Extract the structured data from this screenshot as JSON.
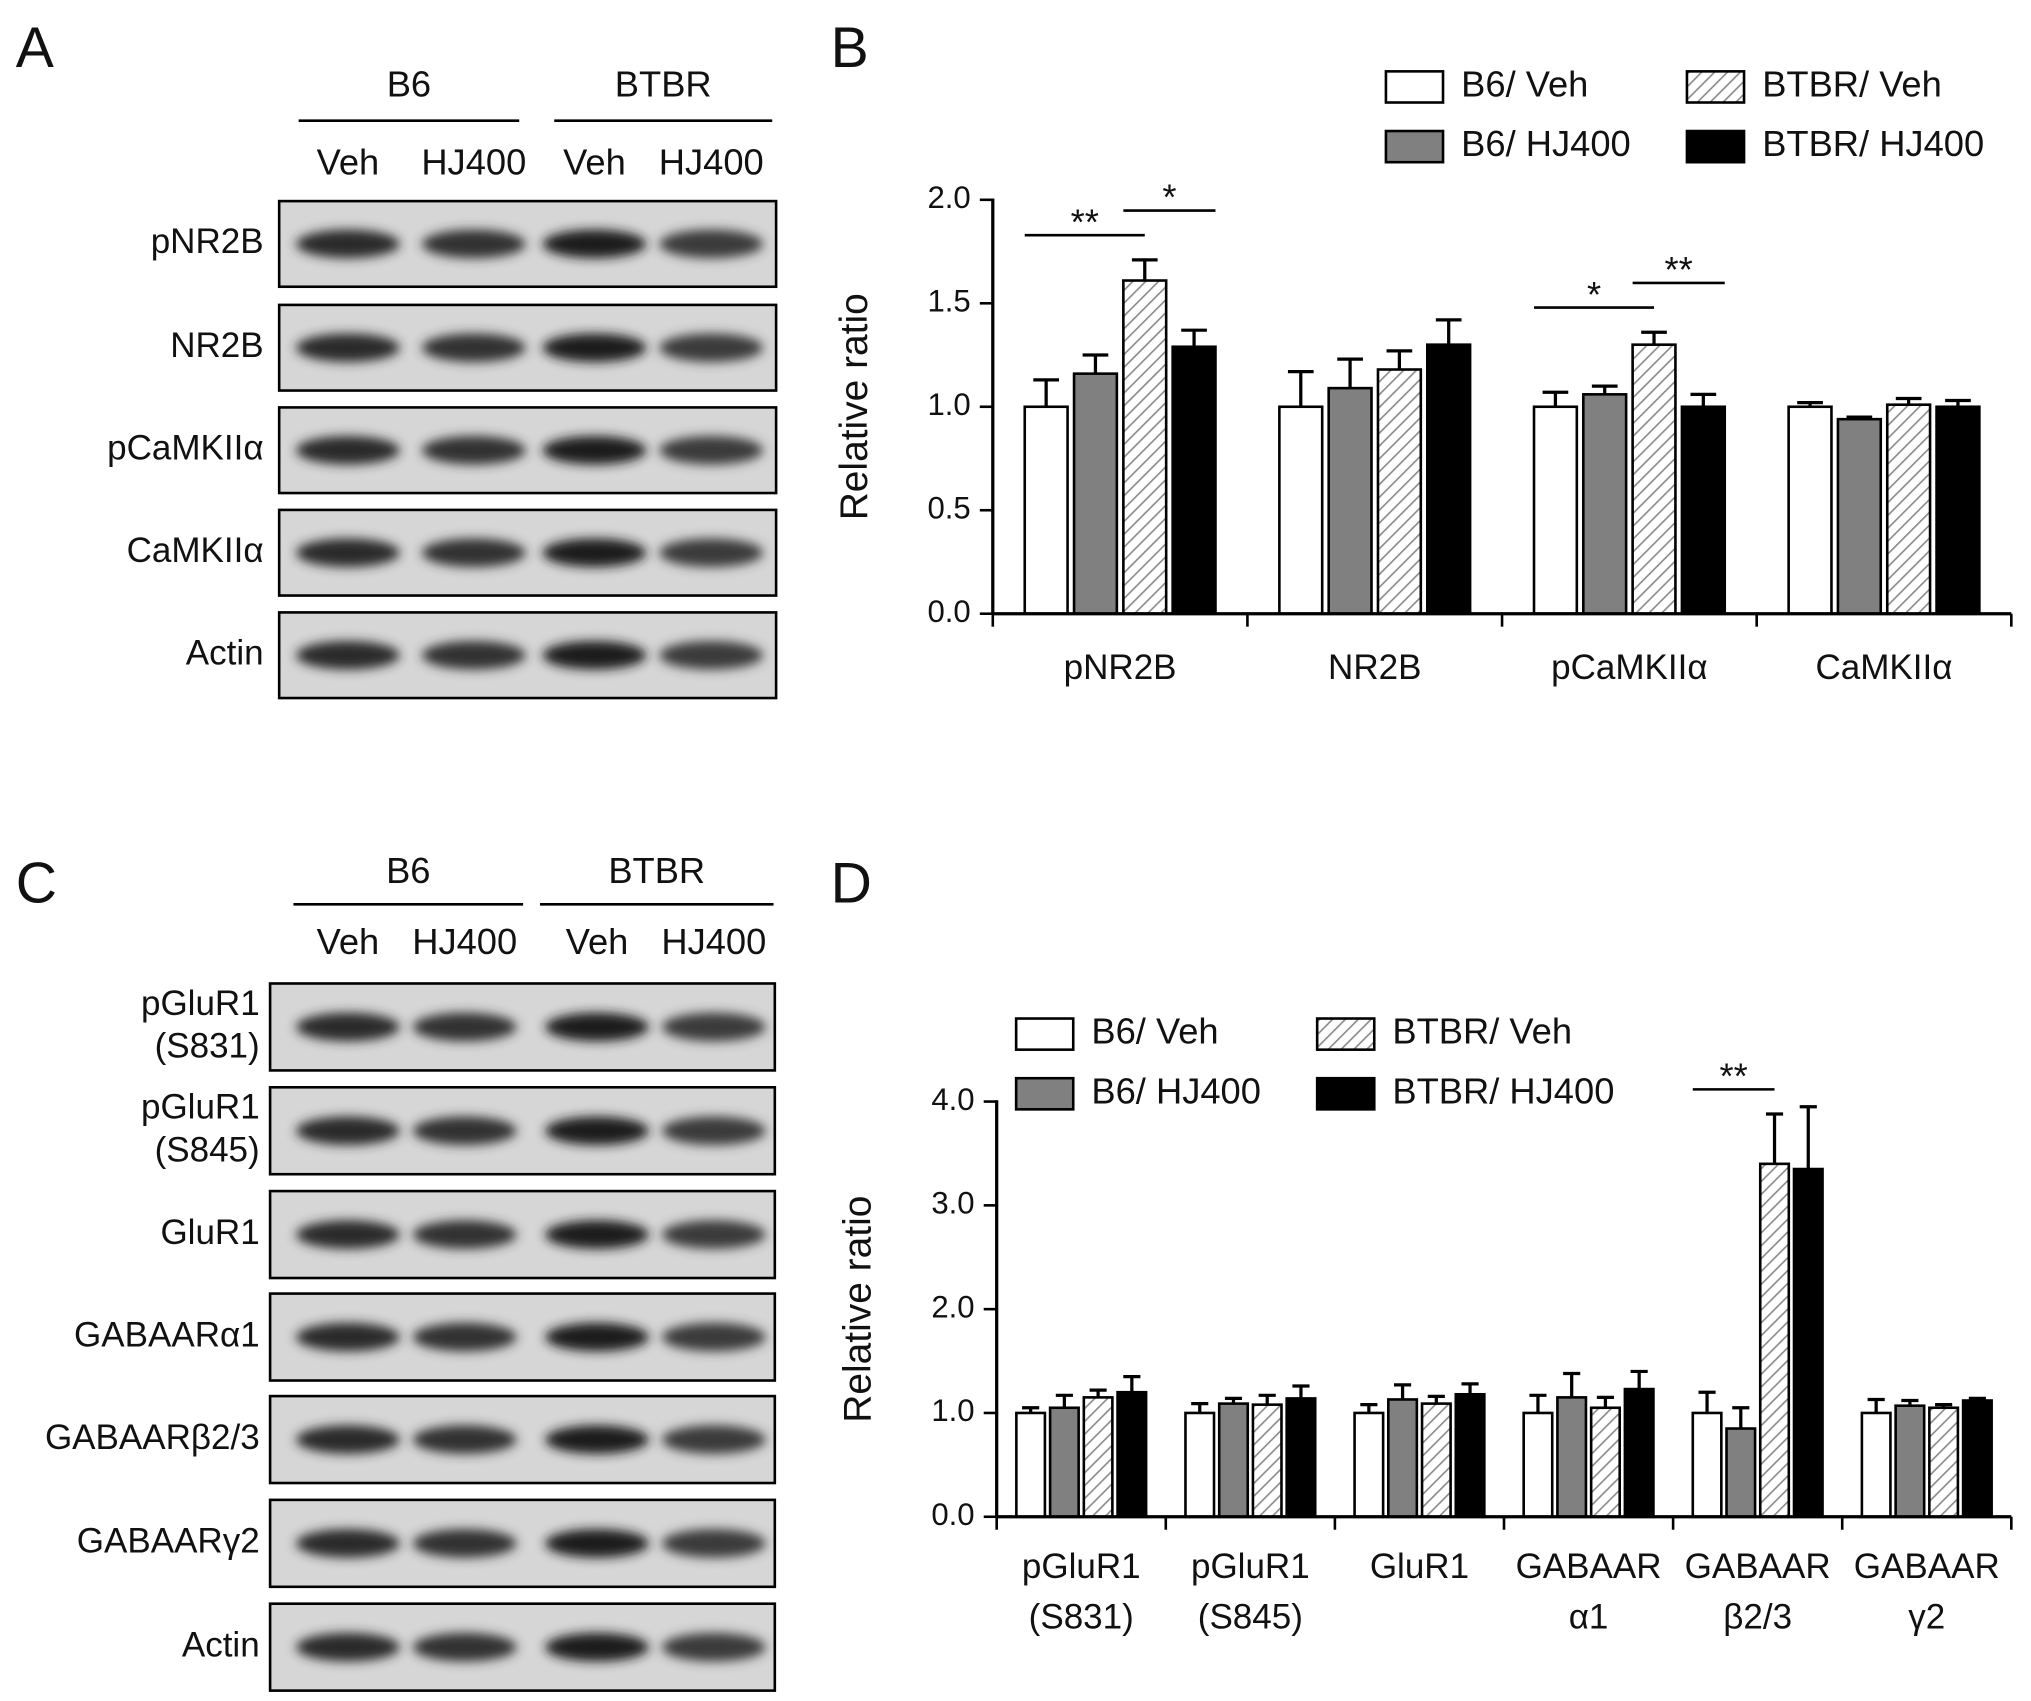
{
  "panels": [
    "A",
    "B",
    "C",
    "D"
  ],
  "blots": [
    {
      "groups": [
        "B6",
        "BTBR"
      ],
      "lanes": [
        "Veh",
        "HJ400",
        "Veh",
        "HJ400"
      ],
      "rows": [
        [
          "pNR2B"
        ],
        [
          "NR2B"
        ],
        [
          "pCaMKIIα"
        ],
        [
          "CaMKIIα"
        ],
        [
          "Actin"
        ]
      ]
    },
    {
      "groups": [
        "B6",
        "BTBR"
      ],
      "lanes": [
        "Veh",
        "HJ400",
        "Veh",
        "HJ400"
      ],
      "rows": [
        [
          "pGluR1",
          "(S831)"
        ],
        [
          "pGluR1",
          "(S845)"
        ],
        [
          "GluR1"
        ],
        [
          "GABAARα1"
        ],
        [
          "GABAARβ2/3"
        ],
        [
          "GABAARγ2"
        ],
        [
          "Actin"
        ]
      ]
    }
  ],
  "chart_data": [
    {
      "type": "bar",
      "ylabel": "Relative ratio",
      "categories": [
        [
          "pNR2B"
        ],
        [
          "NR2B"
        ],
        [
          "pCaMKIIα"
        ],
        [
          "CaMKIIα"
        ]
      ],
      "series": [
        {
          "name": "B6/ Veh",
          "color": "#ffffff",
          "values": [
            1.0,
            1.0,
            1.0,
            1.0
          ],
          "errors": [
            0.13,
            0.17,
            0.07,
            0.02
          ]
        },
        {
          "name": "B6/ HJ400",
          "color": "#808080",
          "values": [
            1.16,
            1.09,
            1.06,
            0.94
          ],
          "errors": [
            0.09,
            0.14,
            0.04,
            0.01
          ]
        },
        {
          "name": "BTBR/ Veh",
          "color": "#ffffff",
          "pattern": "hatch",
          "values": [
            1.61,
            1.18,
            1.3,
            1.01
          ],
          "errors": [
            0.1,
            0.09,
            0.06,
            0.03
          ]
        },
        {
          "name": "BTBR/ HJ400",
          "color": "#000000",
          "values": [
            1.29,
            1.3,
            1.0,
            1.0
          ],
          "errors": [
            0.08,
            0.12,
            0.06,
            0.03
          ]
        }
      ],
      "ylim": [
        0,
        2
      ],
      "yticks": [
        {
          "value": 0,
          "label": "0.0"
        },
        {
          "value": 0.5,
          "label": "0.5"
        },
        {
          "value": 1,
          "label": "1.0"
        },
        {
          "value": 1.5,
          "label": "1.5"
        },
        {
          "value": 2,
          "label": "2.0"
        }
      ],
      "annotations": [
        {
          "text": "**",
          "category": 0,
          "from": 0,
          "to": 2
        },
        {
          "text": "*",
          "category": 0,
          "from": 2,
          "to": 3
        },
        {
          "text": "*",
          "category": 2,
          "from": 0,
          "to": 2
        },
        {
          "text": "**",
          "category": 2,
          "from": 2,
          "to": 3
        }
      ]
    },
    {
      "type": "bar",
      "ylabel": "Relative ratio",
      "categories": [
        [
          "pGluR1",
          "(S831)"
        ],
        [
          "pGluR1",
          "(S845)"
        ],
        [
          "GluR1"
        ],
        [
          "GABAAR",
          "α1"
        ],
        [
          "GABAAR",
          "β2/3"
        ],
        [
          "GABAAR",
          "γ2"
        ]
      ],
      "series": [
        {
          "name": "B6/ Veh",
          "color": "#ffffff",
          "values": [
            1.0,
            1.0,
            1.0,
            1.0,
            1.0,
            1.0
          ],
          "errors": [
            0.05,
            0.09,
            0.08,
            0.17,
            0.2,
            0.13
          ]
        },
        {
          "name": "B6/ HJ400",
          "color": "#808080",
          "values": [
            1.05,
            1.09,
            1.13,
            1.15,
            0.85,
            1.07
          ],
          "errors": [
            0.12,
            0.05,
            0.14,
            0.23,
            0.2,
            0.05
          ]
        },
        {
          "name": "BTBR/ Veh",
          "color": "#ffffff",
          "pattern": "hatch",
          "values": [
            1.15,
            1.08,
            1.09,
            1.05,
            3.4,
            1.05
          ],
          "errors": [
            0.07,
            0.09,
            0.07,
            0.1,
            0.48,
            0.03
          ]
        },
        {
          "name": "BTBR/ HJ400",
          "color": "#000000",
          "values": [
            1.2,
            1.14,
            1.18,
            1.23,
            3.35,
            1.12
          ],
          "errors": [
            0.15,
            0.12,
            0.1,
            0.17,
            0.6,
            0.02
          ]
        }
      ],
      "ylim": [
        0,
        4
      ],
      "yticks": [
        {
          "value": 0,
          "label": "0.0"
        },
        {
          "value": 1,
          "label": "1.0"
        },
        {
          "value": 2,
          "label": "2.0"
        },
        {
          "value": 3,
          "label": "3.0"
        },
        {
          "value": 4,
          "label": "4.0"
        }
      ],
      "annotations": [
        {
          "text": "**",
          "category": 4,
          "from": 0,
          "to": 2
        }
      ]
    }
  ]
}
